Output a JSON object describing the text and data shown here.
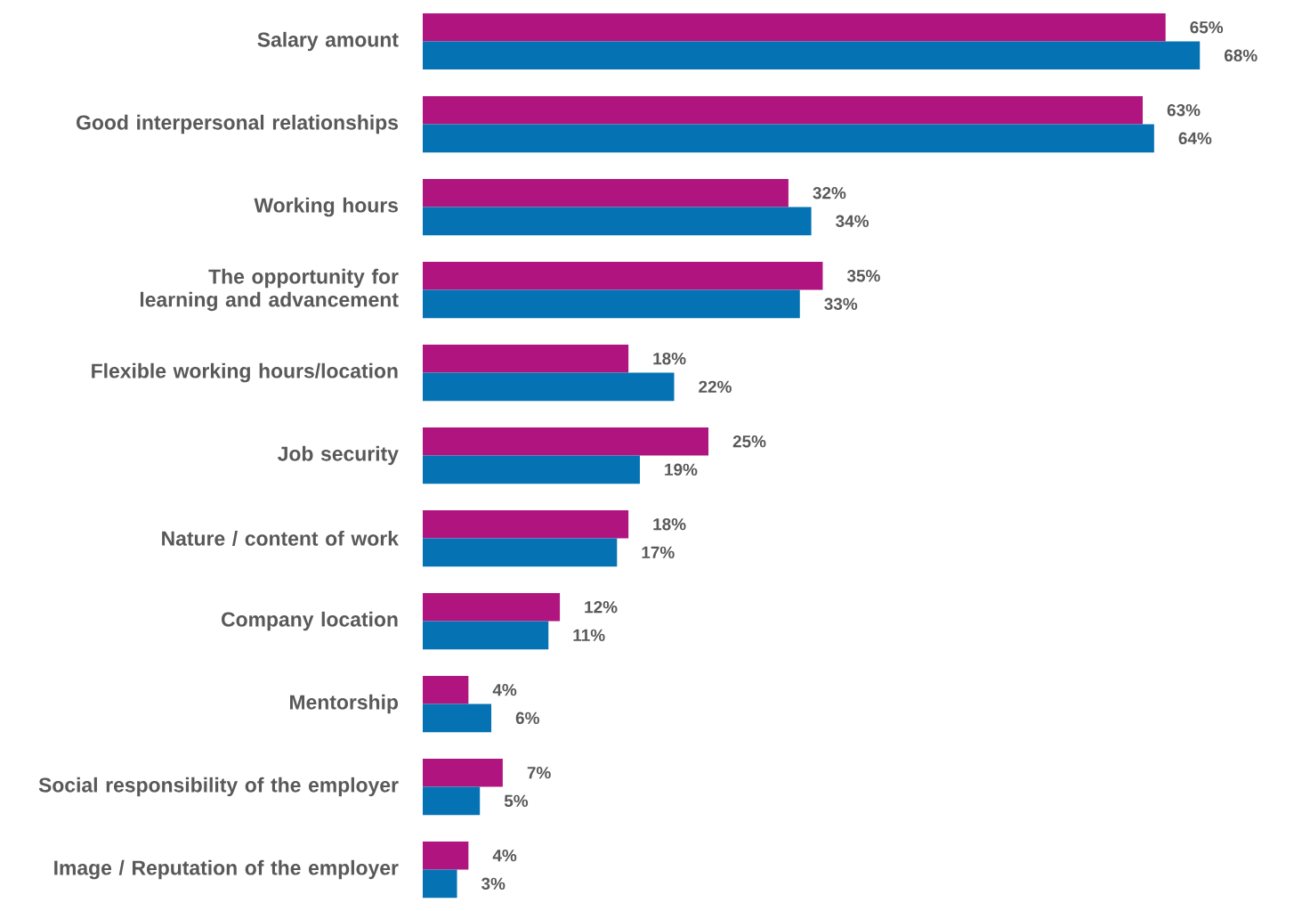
{
  "chart_data": {
    "type": "bar",
    "orientation": "horizontal",
    "categories": [
      "Salary amount",
      "Good interpersonal relationships",
      "Working hours",
      "The opportunity for learning and advancement",
      "Flexible working hours/location",
      "Job security",
      "Nature / content of work",
      "Company location",
      "Mentorship",
      "Social responsibility of the employer",
      "Image / Reputation of the employer"
    ],
    "series": [
      {
        "color": "#b0157f",
        "values": [
          65,
          63,
          32,
          35,
          18,
          25,
          18,
          12,
          4,
          7,
          4
        ],
        "value_labels": [
          "65%",
          "63%",
          "32%",
          "35%",
          "18%",
          "25%",
          "18%",
          "12%",
          "4%",
          "7%",
          "4%"
        ]
      },
      {
        "color": "#0572b4",
        "values": [
          68,
          64,
          34,
          33,
          22,
          19,
          17,
          11,
          6,
          5,
          3
        ],
        "value_labels": [
          "68%",
          "64%",
          "34%",
          "33%",
          "22%",
          "19%",
          "17%",
          "11%",
          "6%",
          "5%",
          "3%"
        ]
      }
    ]
  }
}
